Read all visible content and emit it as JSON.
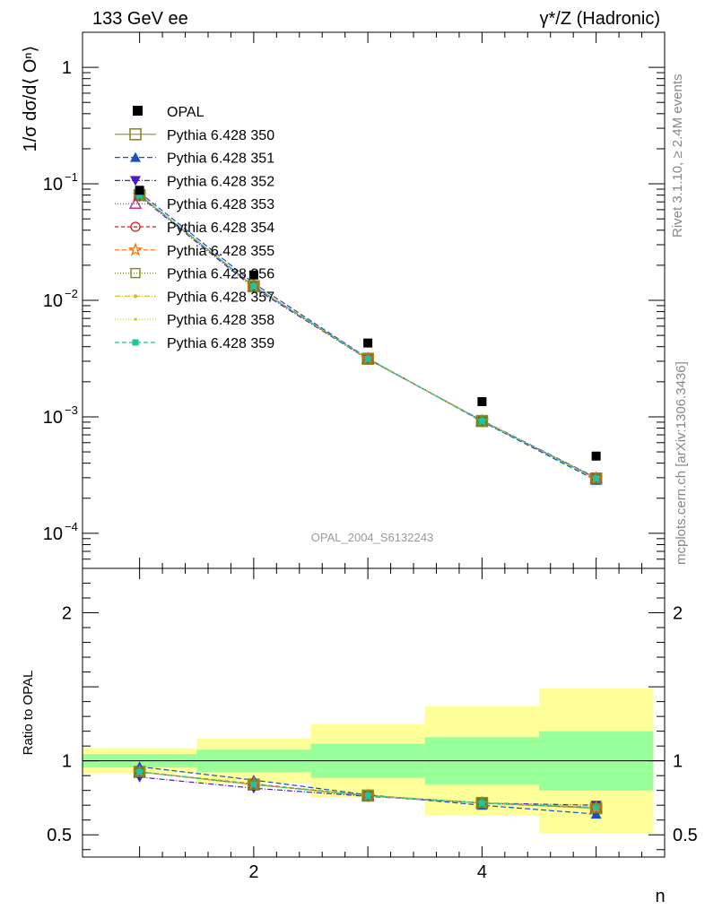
{
  "header": {
    "left": "133 GeV ee",
    "right": "γ*/Z (Hadronic)"
  },
  "side_labels": {
    "rivet": "Rivet 3.1.10, ≥ 2.4M events",
    "mcplots": "mcplots.cern.ch [arXiv:1306.3436]"
  },
  "watermark": "OPAL_2004_S6132243",
  "chart_data": [
    {
      "type": "scatter",
      "panel": "main",
      "ylabel": "1/σ dσ/d⟨ Oⁿ⟩",
      "yscale": "log",
      "ylim": [
        5e-05,
        2
      ],
      "xlim": [
        0.5,
        5.6
      ],
      "yticks": [
        {
          "value": 1,
          "label": "1"
        },
        {
          "value": 0.1,
          "label": "10",
          "sup": "−1"
        },
        {
          "value": 0.01,
          "label": "10",
          "sup": "−2"
        },
        {
          "value": 0.001,
          "label": "10",
          "sup": "−3"
        },
        {
          "value": 0.0001,
          "label": "10",
          "sup": "−4"
        }
      ],
      "x": [
        1,
        2,
        3,
        4,
        5
      ],
      "data": {
        "name": "OPAL",
        "values": [
          0.088,
          0.0165,
          0.0043,
          0.00135,
          0.00046
        ]
      },
      "series": [
        {
          "name": "Pythia 6.428 350",
          "color": "#8a8a1e",
          "dash": "",
          "marker": "square-open",
          "values": [
            0.08,
            0.0132,
            0.00315,
            0.00092,
            0.000295
          ]
        },
        {
          "name": "Pythia 6.428 351",
          "color": "#1a4fc4",
          "dash": "6,3",
          "marker": "triangle-up-filled",
          "values": [
            0.084,
            0.014,
            0.00318,
            0.00091,
            0.000285
          ]
        },
        {
          "name": "Pythia 6.428 352",
          "color": "#4b1cc4",
          "dash": "6,2,1,2",
          "marker": "triangle-down-filled",
          "values": [
            0.078,
            0.0128,
            0.00312,
            0.00093,
            0.0003
          ]
        },
        {
          "name": "Pythia 6.428 353",
          "color": "#b8237e",
          "dash": "1,2",
          "marker": "triangle-up-open",
          "values": [
            0.08,
            0.0132,
            0.00315,
            0.00092,
            0.000298
          ]
        },
        {
          "name": "Pythia 6.428 354",
          "color": "#d7191c",
          "dash": "4,3",
          "marker": "circle-open",
          "values": [
            0.08,
            0.0132,
            0.00315,
            0.00092,
            0.000297
          ]
        },
        {
          "name": "Pythia 6.428 355",
          "color": "#f07014",
          "dash": "5,3",
          "marker": "star-open",
          "values": [
            0.08,
            0.0133,
            0.00316,
            0.00092,
            0.000296
          ]
        },
        {
          "name": "Pythia 6.428 356",
          "color": "#7a8a18",
          "dash": "1,2",
          "marker": "square-open-small",
          "values": [
            0.08,
            0.0132,
            0.00315,
            0.00092,
            0.000295
          ]
        },
        {
          "name": "Pythia 6.428 357",
          "color": "#d6c21e",
          "dash": "6,2,1,2",
          "marker": "dot",
          "values": [
            0.08,
            0.0132,
            0.00315,
            0.00092,
            0.000296
          ]
        },
        {
          "name": "Pythia 6.428 358",
          "color": "#b8d41e",
          "dash": "1,2",
          "marker": "dot-small",
          "values": [
            0.08,
            0.0132,
            0.00315,
            0.00092,
            0.000296
          ]
        },
        {
          "name": "Pythia 6.428 359",
          "color": "#1ec49a",
          "dash": "5,3",
          "marker": "square-filled-small",
          "values": [
            0.08,
            0.0132,
            0.00315,
            0.00092,
            0.000296
          ]
        }
      ]
    },
    {
      "type": "line",
      "panel": "ratio",
      "ylabel": "Ratio to OPAL",
      "xlabel": "n",
      "ylim": [
        0.35,
        2.3
      ],
      "xlim": [
        0.5,
        5.6
      ],
      "xticks": [
        2,
        4
      ],
      "yticks": [
        0.5,
        1,
        2
      ],
      "uncertainty_bands": {
        "bins": [
          [
            0.5,
            1.5
          ],
          [
            1.5,
            2.5
          ],
          [
            2.5,
            3.5
          ],
          [
            3.5,
            4.5
          ],
          [
            4.5,
            5.5
          ]
        ],
        "inner": [
          [
            0.955,
            1.045
          ],
          [
            0.925,
            1.075
          ],
          [
            0.885,
            1.115
          ],
          [
            0.84,
            1.16
          ],
          [
            0.8,
            1.2
          ]
        ],
        "outer": [
          [
            0.915,
            1.085
          ],
          [
            0.85,
            1.15
          ],
          [
            0.75,
            1.25
          ],
          [
            0.63,
            1.37
          ],
          [
            0.51,
            1.49
          ]
        ]
      },
      "x": [
        1,
        2,
        3,
        4,
        5
      ],
      "series": [
        {
          "name": "Pythia 6.428 350",
          "values": [
            0.925,
            0.84,
            0.765,
            0.715,
            0.68
          ]
        },
        {
          "name": "Pythia 6.428 351",
          "values": [
            0.96,
            0.87,
            0.77,
            0.7,
            0.64
          ]
        },
        {
          "name": "Pythia 6.428 352",
          "values": [
            0.89,
            0.815,
            0.76,
            0.715,
            0.7
          ]
        },
        {
          "name": "Pythia 6.428 353",
          "values": [
            0.925,
            0.84,
            0.765,
            0.715,
            0.685
          ]
        },
        {
          "name": "Pythia 6.428 354",
          "values": [
            0.925,
            0.84,
            0.765,
            0.715,
            0.685
          ]
        },
        {
          "name": "Pythia 6.428 355",
          "values": [
            0.925,
            0.845,
            0.765,
            0.715,
            0.68
          ]
        },
        {
          "name": "Pythia 6.428 356",
          "values": [
            0.925,
            0.84,
            0.765,
            0.715,
            0.68
          ]
        },
        {
          "name": "Pythia 6.428 357",
          "values": [
            0.925,
            0.84,
            0.765,
            0.715,
            0.685
          ]
        },
        {
          "name": "Pythia 6.428 358",
          "values": [
            0.925,
            0.84,
            0.765,
            0.715,
            0.685
          ]
        },
        {
          "name": "Pythia 6.428 359",
          "values": [
            0.925,
            0.84,
            0.765,
            0.715,
            0.685
          ]
        }
      ]
    }
  ]
}
